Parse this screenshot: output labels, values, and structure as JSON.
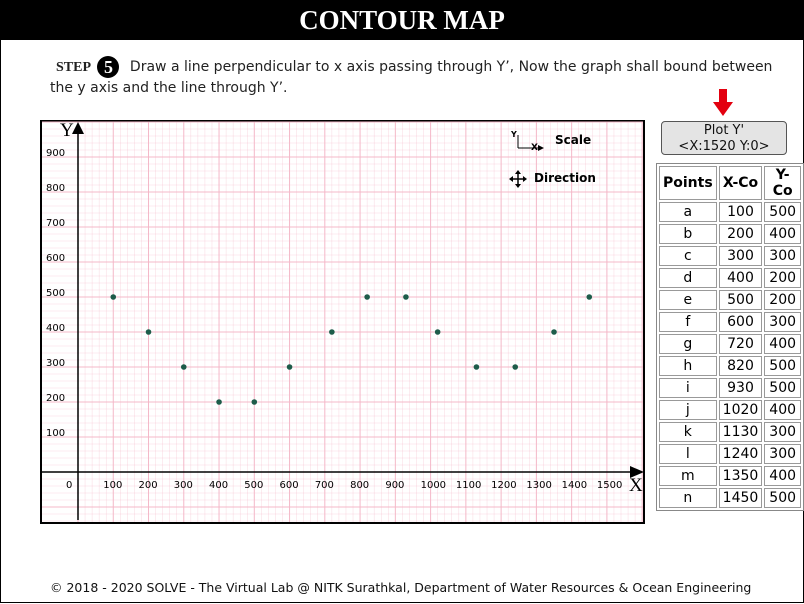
{
  "page": {
    "title": "CONTOUR MAP"
  },
  "step": {
    "label": "STEP",
    "number": "5",
    "instruction": "Draw a line perpendicular to x axis passing through Y’, Now the graph shall bound between the y axis and the line through Y’."
  },
  "plot_button": {
    "line1": "Plot Y'",
    "line2": "<X:1520 Y:0>"
  },
  "legend": {
    "scale_label": "Scale",
    "direction_label": "Direction",
    "axis_y": "Y",
    "axis_x": "X"
  },
  "graph": {
    "y_axis_label": "Y",
    "x_axis_label": "X",
    "origin_label": "0",
    "x_ticks": [
      100,
      200,
      300,
      400,
      500,
      600,
      700,
      800,
      900,
      1000,
      1100,
      1200,
      1300,
      1400,
      1500
    ],
    "y_ticks": [
      100,
      200,
      300,
      400,
      500,
      600,
      700,
      800,
      900
    ],
    "xlim": [
      0,
      1600
    ],
    "ylim": [
      0,
      1000
    ],
    "grid": true,
    "point_color": "#1e5c4a",
    "grid_color": "#f4b8c8",
    "points": [
      {
        "x": 100,
        "y": 500
      },
      {
        "x": 200,
        "y": 400
      },
      {
        "x": 300,
        "y": 300
      },
      {
        "x": 400,
        "y": 200
      },
      {
        "x": 500,
        "y": 200
      },
      {
        "x": 600,
        "y": 300
      },
      {
        "x": 720,
        "y": 400
      },
      {
        "x": 820,
        "y": 500
      },
      {
        "x": 930,
        "y": 500
      },
      {
        "x": 1020,
        "y": 400
      },
      {
        "x": 1130,
        "y": 300
      },
      {
        "x": 1240,
        "y": 300
      },
      {
        "x": 1350,
        "y": 400
      },
      {
        "x": 1450,
        "y": 500
      }
    ]
  },
  "table": {
    "headers": [
      "Points",
      "X-Co",
      "Y-Co"
    ],
    "rows": [
      [
        "a",
        "100",
        "500"
      ],
      [
        "b",
        "200",
        "400"
      ],
      [
        "c",
        "300",
        "300"
      ],
      [
        "d",
        "400",
        "200"
      ],
      [
        "e",
        "500",
        "200"
      ],
      [
        "f",
        "600",
        "300"
      ],
      [
        "g",
        "720",
        "400"
      ],
      [
        "h",
        "820",
        "500"
      ],
      [
        "i",
        "930",
        "500"
      ],
      [
        "j",
        "1020",
        "400"
      ],
      [
        "k",
        "1130",
        "300"
      ],
      [
        "l",
        "1240",
        "300"
      ],
      [
        "m",
        "1350",
        "400"
      ],
      [
        "n",
        "1450",
        "500"
      ]
    ]
  },
  "footer": {
    "text": "© 2018 - 2020 SOLVE - The Virtual Lab @ NITK Surathkal, Department of Water Resources & Ocean Engineering"
  },
  "colors": {
    "arrow": "#e3000f",
    "title_bg": "#000000"
  }
}
